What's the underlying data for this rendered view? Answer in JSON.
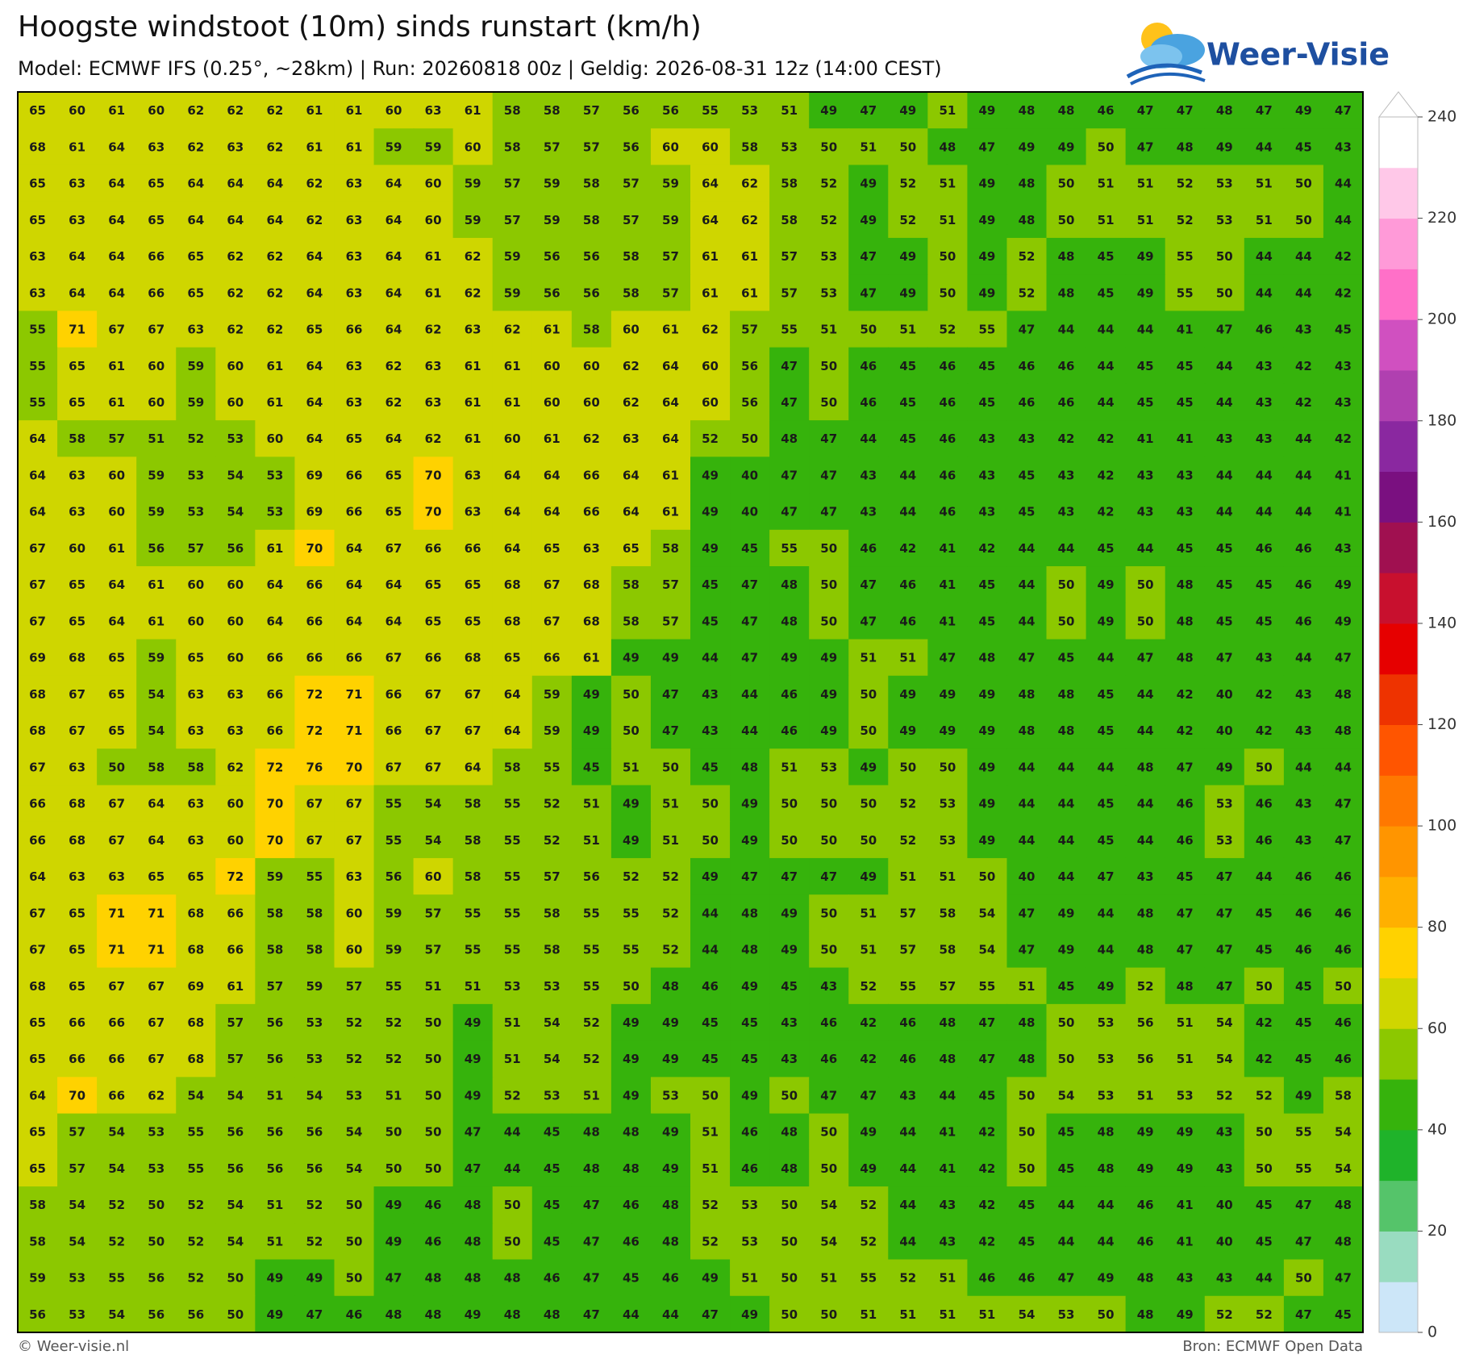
{
  "header": {
    "title": "Hoogste windstoot (10m) sinds runstart (km/h)",
    "subtitle": "Model: ECMWF IFS (0.25°, ~28km)  |  Run: 20260818 00z  |  Geldig: 2026-08-31 12z (14:00 CEST)",
    "logo": "Weer-Visie"
  },
  "grid": {
    "rows": [
      [
        65,
        60,
        61,
        60,
        62,
        62,
        62,
        61,
        61,
        60,
        63,
        61,
        58,
        58,
        57,
        56,
        56,
        55,
        53,
        51,
        49,
        47,
        49,
        51,
        49,
        48,
        48,
        46,
        47,
        47,
        48,
        47,
        49,
        47
      ],
      [
        68,
        61,
        64,
        63,
        62,
        63,
        62,
        61,
        61,
        59,
        59,
        60,
        58,
        57,
        57,
        56,
        60,
        60,
        58,
        53,
        50,
        51,
        50,
        48,
        47,
        49,
        49,
        50,
        47,
        48,
        49,
        44,
        45,
        43
      ],
      [
        65,
        63,
        64,
        65,
        64,
        64,
        64,
        62,
        63,
        64,
        60,
        59,
        57,
        59,
        58,
        57,
        59,
        64,
        62,
        58,
        52,
        49,
        52,
        51,
        49,
        48,
        50,
        51,
        51,
        52,
        53,
        51,
        50,
        44
      ],
      [
        65,
        63,
        64,
        65,
        64,
        64,
        64,
        62,
        63,
        64,
        60,
        59,
        57,
        59,
        58,
        57,
        59,
        64,
        62,
        58,
        52,
        49,
        52,
        51,
        49,
        48,
        50,
        51,
        51,
        52,
        53,
        51,
        50,
        44
      ],
      [
        63,
        64,
        64,
        66,
        65,
        62,
        62,
        64,
        63,
        64,
        61,
        62,
        59,
        56,
        56,
        58,
        57,
        61,
        61,
        57,
        53,
        47,
        49,
        50,
        49,
        52,
        48,
        45,
        49,
        55,
        50,
        44,
        44,
        42
      ],
      [
        63,
        64,
        64,
        66,
        65,
        62,
        62,
        64,
        63,
        64,
        61,
        62,
        59,
        56,
        56,
        58,
        57,
        61,
        61,
        57,
        53,
        47,
        49,
        50,
        49,
        52,
        48,
        45,
        49,
        55,
        50,
        44,
        44,
        42
      ],
      [
        55,
        71,
        67,
        67,
        63,
        62,
        62,
        65,
        66,
        64,
        62,
        63,
        62,
        61,
        58,
        60,
        61,
        62,
        57,
        55,
        51,
        50,
        51,
        52,
        55,
        47,
        44,
        44,
        44,
        41,
        47,
        46,
        43,
        45
      ],
      [
        55,
        65,
        61,
        60,
        59,
        60,
        61,
        64,
        63,
        62,
        63,
        61,
        61,
        60,
        60,
        62,
        64,
        60,
        56,
        47,
        50,
        46,
        45,
        46,
        45,
        46,
        46,
        44,
        45,
        45,
        44,
        43,
        42,
        43
      ],
      [
        55,
        65,
        61,
        60,
        59,
        60,
        61,
        64,
        63,
        62,
        63,
        61,
        61,
        60,
        60,
        62,
        64,
        60,
        56,
        47,
        50,
        46,
        45,
        46,
        45,
        46,
        46,
        44,
        45,
        45,
        44,
        43,
        42,
        43
      ],
      [
        64,
        58,
        57,
        51,
        52,
        53,
        60,
        64,
        65,
        64,
        62,
        61,
        60,
        61,
        62,
        63,
        64,
        52,
        50,
        48,
        47,
        44,
        45,
        46,
        43,
        43,
        42,
        42,
        41,
        41,
        43,
        43,
        44,
        42
      ],
      [
        64,
        63,
        60,
        59,
        53,
        54,
        53,
        69,
        66,
        65,
        70,
        63,
        64,
        64,
        66,
        64,
        61,
        49,
        40,
        47,
        47,
        43,
        44,
        46,
        43,
        45,
        43,
        42,
        43,
        43,
        44,
        44,
        44,
        41
      ],
      [
        64,
        63,
        60,
        59,
        53,
        54,
        53,
        69,
        66,
        65,
        70,
        63,
        64,
        64,
        66,
        64,
        61,
        49,
        40,
        47,
        47,
        43,
        44,
        46,
        43,
        45,
        43,
        42,
        43,
        43,
        44,
        44,
        44,
        41
      ],
      [
        67,
        60,
        61,
        56,
        57,
        56,
        61,
        70,
        64,
        67,
        66,
        66,
        64,
        65,
        63,
        65,
        58,
        49,
        45,
        55,
        50,
        46,
        42,
        41,
        42,
        44,
        44,
        45,
        44,
        45,
        45,
        46,
        46,
        43
      ],
      [
        67,
        65,
        64,
        61,
        60,
        60,
        64,
        66,
        64,
        64,
        65,
        65,
        68,
        67,
        68,
        58,
        57,
        45,
        47,
        48,
        50,
        47,
        46,
        41,
        45,
        44,
        50,
        49,
        50,
        48,
        45,
        45,
        46,
        49
      ],
      [
        67,
        65,
        64,
        61,
        60,
        60,
        64,
        66,
        64,
        64,
        65,
        65,
        68,
        67,
        68,
        58,
        57,
        45,
        47,
        48,
        50,
        47,
        46,
        41,
        45,
        44,
        50,
        49,
        50,
        48,
        45,
        45,
        46,
        49
      ],
      [
        69,
        68,
        65,
        59,
        65,
        60,
        66,
        66,
        66,
        67,
        66,
        68,
        65,
        66,
        61,
        49,
        49,
        44,
        47,
        49,
        49,
        51,
        51,
        47,
        48,
        47,
        45,
        44,
        47,
        48,
        47,
        43,
        44,
        47
      ],
      [
        68,
        67,
        65,
        54,
        63,
        63,
        66,
        72,
        71,
        66,
        67,
        67,
        64,
        59,
        49,
        50,
        47,
        43,
        44,
        46,
        49,
        50,
        49,
        49,
        49,
        48,
        48,
        45,
        44,
        42,
        40,
        42,
        43,
        48
      ],
      [
        68,
        67,
        65,
        54,
        63,
        63,
        66,
        72,
        71,
        66,
        67,
        67,
        64,
        59,
        49,
        50,
        47,
        43,
        44,
        46,
        49,
        50,
        49,
        49,
        49,
        48,
        48,
        45,
        44,
        42,
        40,
        42,
        43,
        48
      ],
      [
        67,
        63,
        50,
        58,
        58,
        62,
        72,
        76,
        70,
        67,
        67,
        64,
        58,
        55,
        45,
        51,
        50,
        45,
        48,
        51,
        53,
        49,
        50,
        50,
        49,
        44,
        44,
        44,
        48,
        47,
        49,
        50,
        44,
        44
      ],
      [
        66,
        68,
        67,
        64,
        63,
        60,
        70,
        67,
        67,
        55,
        54,
        58,
        55,
        52,
        51,
        49,
        51,
        50,
        49,
        50,
        50,
        50,
        52,
        53,
        49,
        44,
        44,
        45,
        44,
        46,
        53,
        46,
        43,
        47
      ],
      [
        66,
        68,
        67,
        64,
        63,
        60,
        70,
        67,
        67,
        55,
        54,
        58,
        55,
        52,
        51,
        49,
        51,
        50,
        49,
        50,
        50,
        50,
        52,
        53,
        49,
        44,
        44,
        45,
        44,
        46,
        53,
        46,
        43,
        47
      ],
      [
        64,
        63,
        63,
        65,
        65,
        72,
        59,
        55,
        63,
        56,
        60,
        58,
        55,
        57,
        56,
        52,
        52,
        49,
        47,
        47,
        47,
        49,
        51,
        51,
        50,
        40,
        44,
        47,
        43,
        45,
        47,
        44,
        46,
        46
      ],
      [
        67,
        65,
        71,
        71,
        68,
        66,
        58,
        58,
        60,
        59,
        57,
        55,
        55,
        58,
        55,
        55,
        52,
        44,
        48,
        49,
        50,
        51,
        57,
        58,
        54,
        47,
        49,
        44,
        48,
        47,
        47,
        45,
        46,
        46
      ],
      [
        67,
        65,
        71,
        71,
        68,
        66,
        58,
        58,
        60,
        59,
        57,
        55,
        55,
        58,
        55,
        55,
        52,
        44,
        48,
        49,
        50,
        51,
        57,
        58,
        54,
        47,
        49,
        44,
        48,
        47,
        47,
        45,
        46,
        46
      ],
      [
        68,
        65,
        67,
        67,
        69,
        61,
        57,
        59,
        57,
        55,
        51,
        51,
        53,
        53,
        55,
        50,
        48,
        46,
        49,
        45,
        43,
        52,
        55,
        57,
        55,
        51,
        45,
        49,
        52,
        48,
        47,
        50,
        45,
        50
      ],
      [
        65,
        66,
        66,
        67,
        68,
        57,
        56,
        53,
        52,
        52,
        50,
        49,
        51,
        54,
        52,
        49,
        49,
        45,
        45,
        43,
        46,
        42,
        46,
        48,
        47,
        48,
        50,
        53,
        56,
        51,
        54,
        42,
        45,
        46
      ],
      [
        65,
        66,
        66,
        67,
        68,
        57,
        56,
        53,
        52,
        52,
        50,
        49,
        51,
        54,
        52,
        49,
        49,
        45,
        45,
        43,
        46,
        42,
        46,
        48,
        47,
        48,
        50,
        53,
        56,
        51,
        54,
        42,
        45,
        46
      ],
      [
        64,
        70,
        66,
        62,
        54,
        54,
        51,
        54,
        53,
        51,
        50,
        49,
        52,
        53,
        51,
        49,
        53,
        50,
        49,
        50,
        47,
        47,
        43,
        44,
        45,
        50,
        54,
        53,
        51,
        53,
        52,
        52,
        49,
        58
      ],
      [
        65,
        57,
        54,
        53,
        55,
        56,
        56,
        56,
        54,
        50,
        50,
        47,
        44,
        45,
        48,
        48,
        49,
        51,
        46,
        48,
        50,
        49,
        44,
        41,
        42,
        50,
        45,
        48,
        49,
        49,
        43,
        50,
        55,
        54
      ],
      [
        65,
        57,
        54,
        53,
        55,
        56,
        56,
        56,
        54,
        50,
        50,
        47,
        44,
        45,
        48,
        48,
        49,
        51,
        46,
        48,
        50,
        49,
        44,
        41,
        42,
        50,
        45,
        48,
        49,
        49,
        43,
        50,
        55,
        54
      ],
      [
        58,
        54,
        52,
        50,
        52,
        54,
        51,
        52,
        50,
        49,
        46,
        48,
        50,
        45,
        47,
        46,
        48,
        52,
        53,
        50,
        54,
        52,
        44,
        43,
        42,
        45,
        44,
        44,
        46,
        41,
        40,
        45,
        47,
        48
      ],
      [
        58,
        54,
        52,
        50,
        52,
        54,
        51,
        52,
        50,
        49,
        46,
        48,
        50,
        45,
        47,
        46,
        48,
        52,
        53,
        50,
        54,
        52,
        44,
        43,
        42,
        45,
        44,
        44,
        46,
        41,
        40,
        45,
        47,
        48
      ],
      [
        59,
        53,
        55,
        56,
        52,
        50,
        49,
        49,
        50,
        47,
        48,
        48,
        48,
        46,
        47,
        45,
        46,
        49,
        51,
        50,
        51,
        55,
        52,
        51,
        46,
        46,
        47,
        49,
        48,
        43,
        43,
        44,
        50,
        47
      ],
      [
        56,
        53,
        54,
        56,
        56,
        50,
        49,
        47,
        46,
        48,
        48,
        49,
        48,
        48,
        47,
        44,
        44,
        47,
        49,
        50,
        50,
        51,
        51,
        51,
        51,
        54,
        53,
        50,
        48,
        49,
        52,
        52,
        47,
        45
      ]
    ]
  },
  "colorbar": {
    "clim": [
      0,
      240
    ],
    "ticks": [
      0,
      20,
      40,
      60,
      80,
      100,
      120,
      140,
      160,
      180,
      200,
      220,
      240
    ],
    "colors": [
      "#cce6f8",
      "#99dcc0",
      "#55c46a",
      "#1fb32a",
      "#36b30c",
      "#8cc800",
      "#cfd600",
      "#ffd200",
      "#ffb000",
      "#ff9500",
      "#ff7800",
      "#ff5500",
      "#ee3300",
      "#e60000",
      "#c8102e",
      "#a01050",
      "#7a1080",
      "#8a28a0",
      "#b040b0",
      "#d050c0",
      "#ff70c8",
      "#ff9ad8",
      "#ffc8e8",
      "#ffffff"
    ]
  },
  "footer": {
    "left": "© Weer-visie.nl",
    "right": "Bron: ECMWF Open Data"
  }
}
